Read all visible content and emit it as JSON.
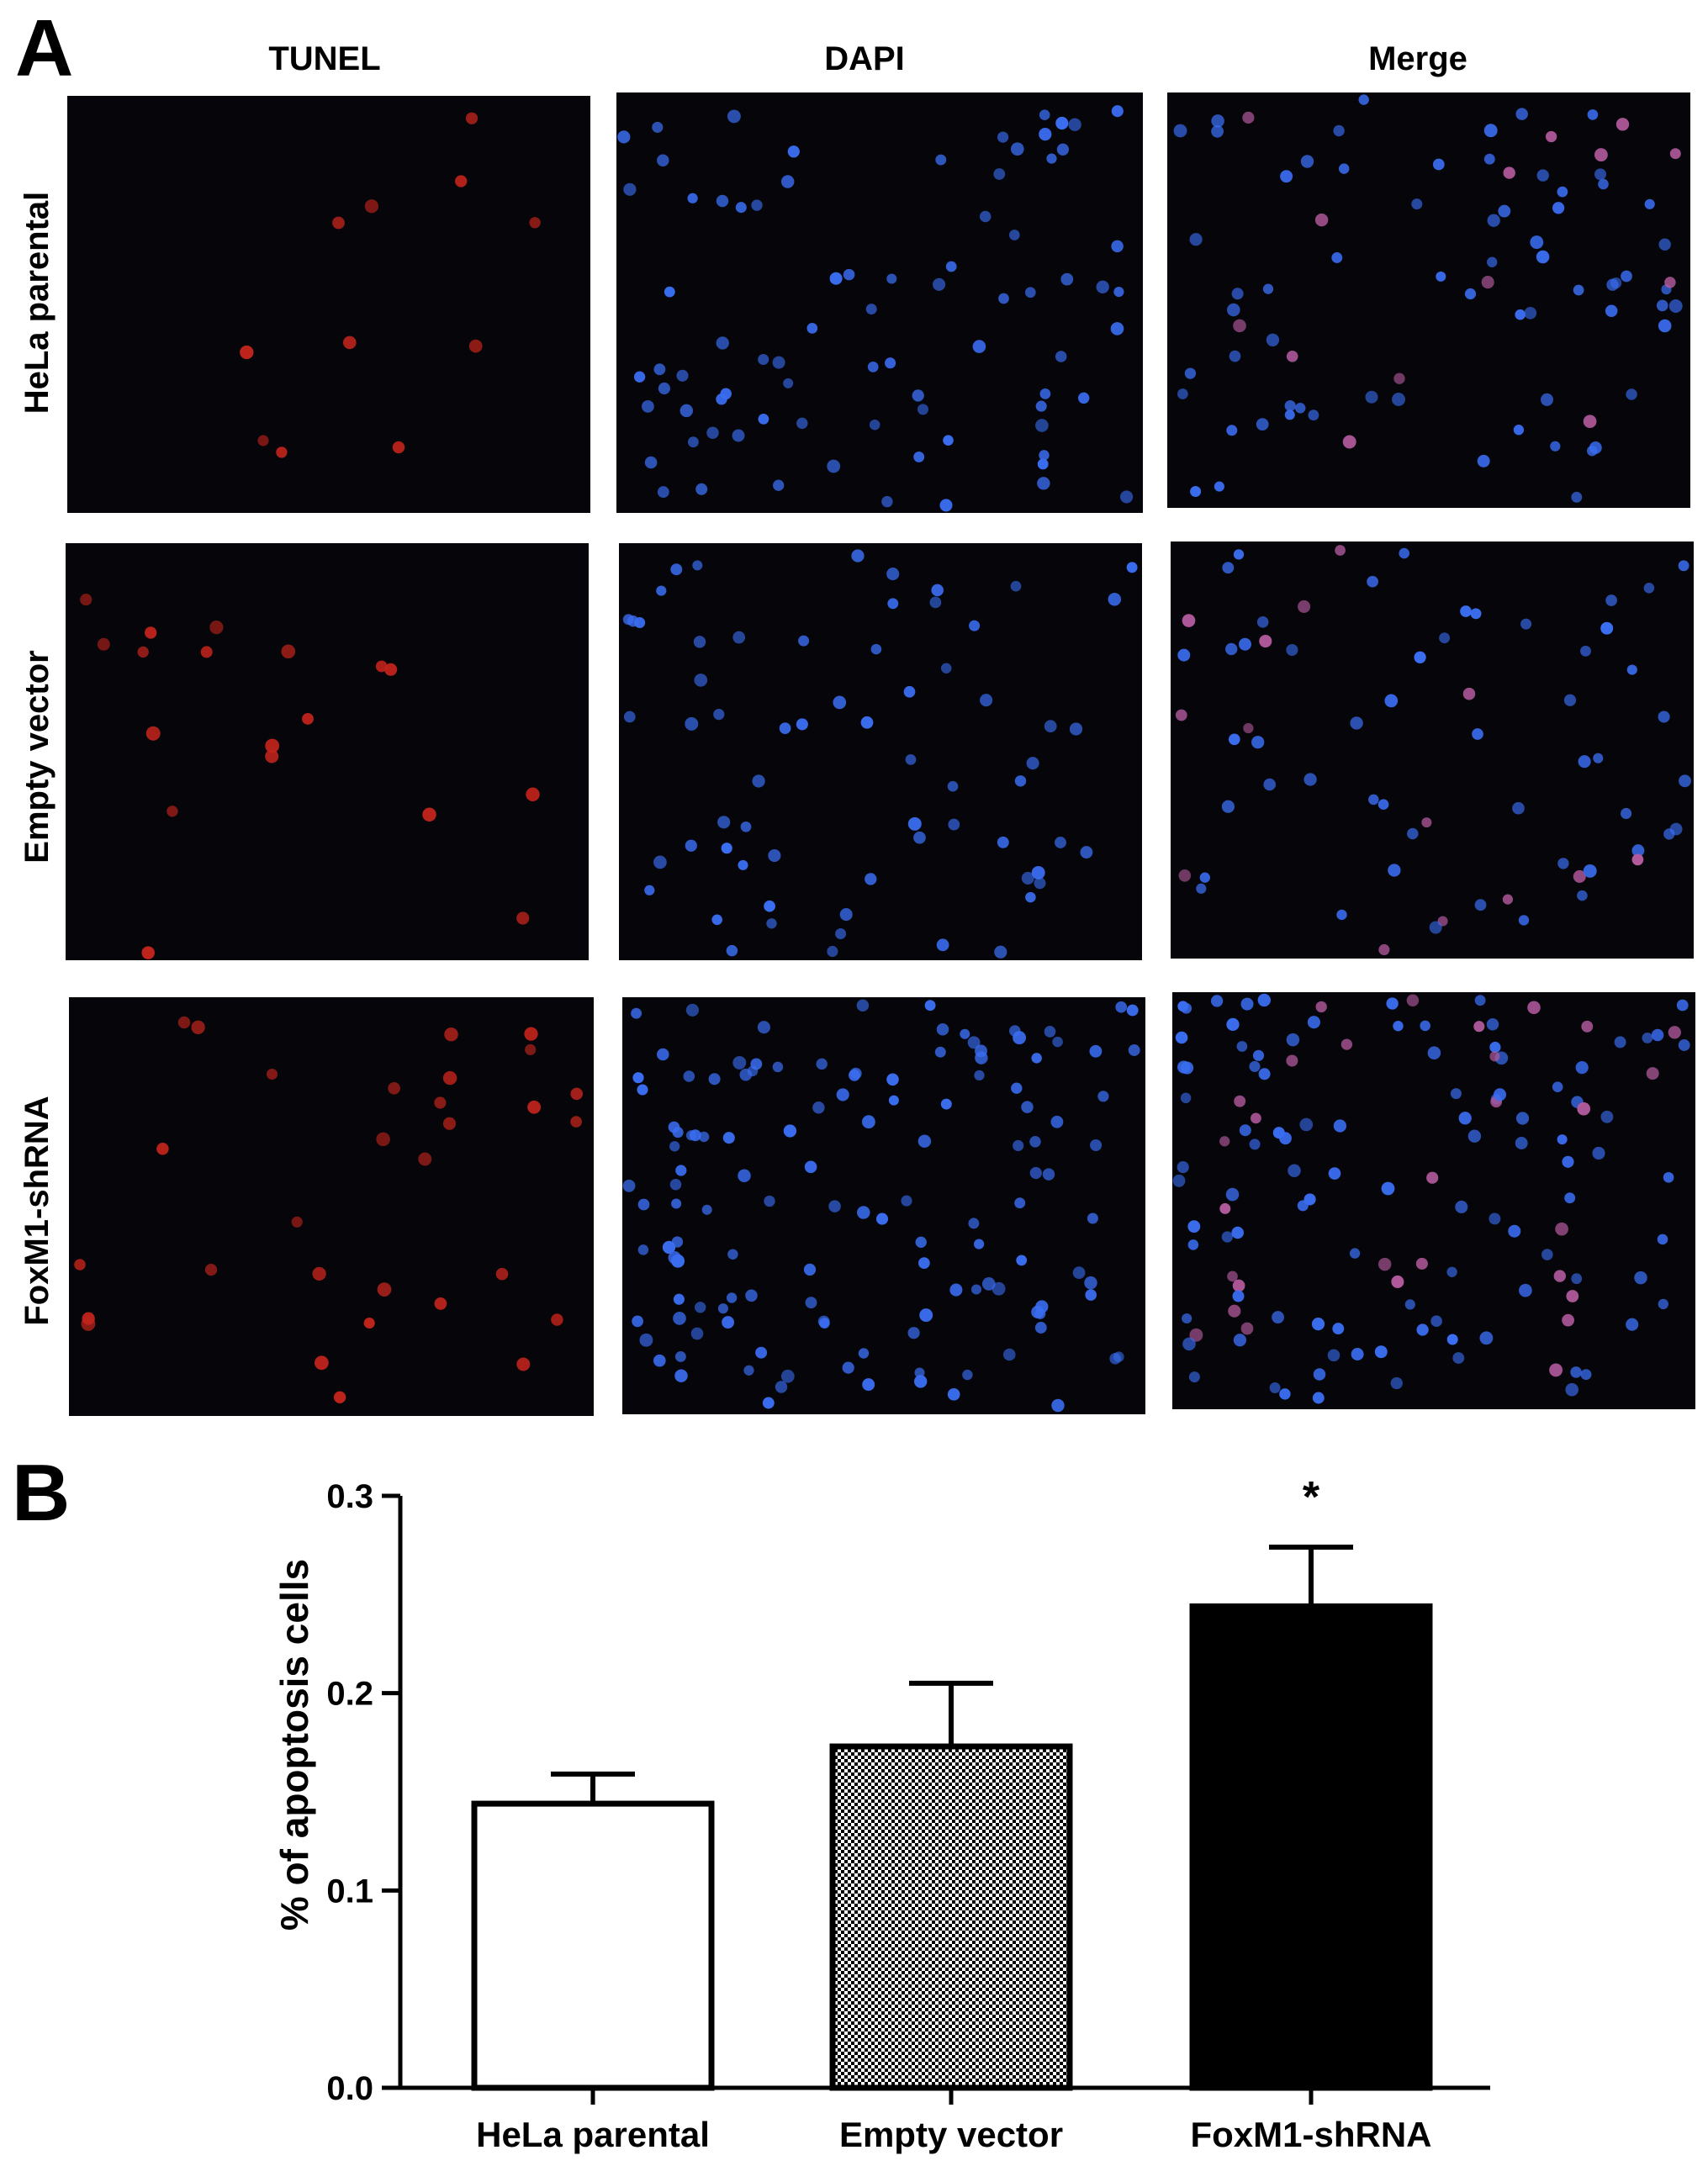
{
  "panel_a": {
    "letter": "A",
    "columns": [
      "TUNEL",
      "DAPI",
      "Merge"
    ],
    "rows": [
      "HeLa parental",
      "Empty vector",
      "FoxM1-shRNA"
    ],
    "stain_colors": {
      "tunel": "#c0241c",
      "dapi": "#3a6df0",
      "background": "#05050a"
    }
  },
  "panel_b": {
    "letter": "B",
    "significance_mark": "*"
  },
  "chart_data": {
    "type": "bar",
    "categories": [
      "HeLa parental",
      "Empty vector",
      "FoxM1-shRNA"
    ],
    "values": [
      0.144,
      0.173,
      0.244
    ],
    "errors": [
      0.015,
      0.032,
      0.03
    ],
    "fills": [
      "white",
      "checkered",
      "black"
    ],
    "significant": [
      false,
      false,
      true
    ],
    "ylabel": "% of apoptosis cells",
    "ylim": [
      0,
      0.3
    ],
    "yticks": [
      "0.0",
      "0.1",
      "0.2",
      "0.3"
    ],
    "ytick_values": [
      0,
      0.1,
      0.2,
      0.3
    ],
    "grid": false
  }
}
